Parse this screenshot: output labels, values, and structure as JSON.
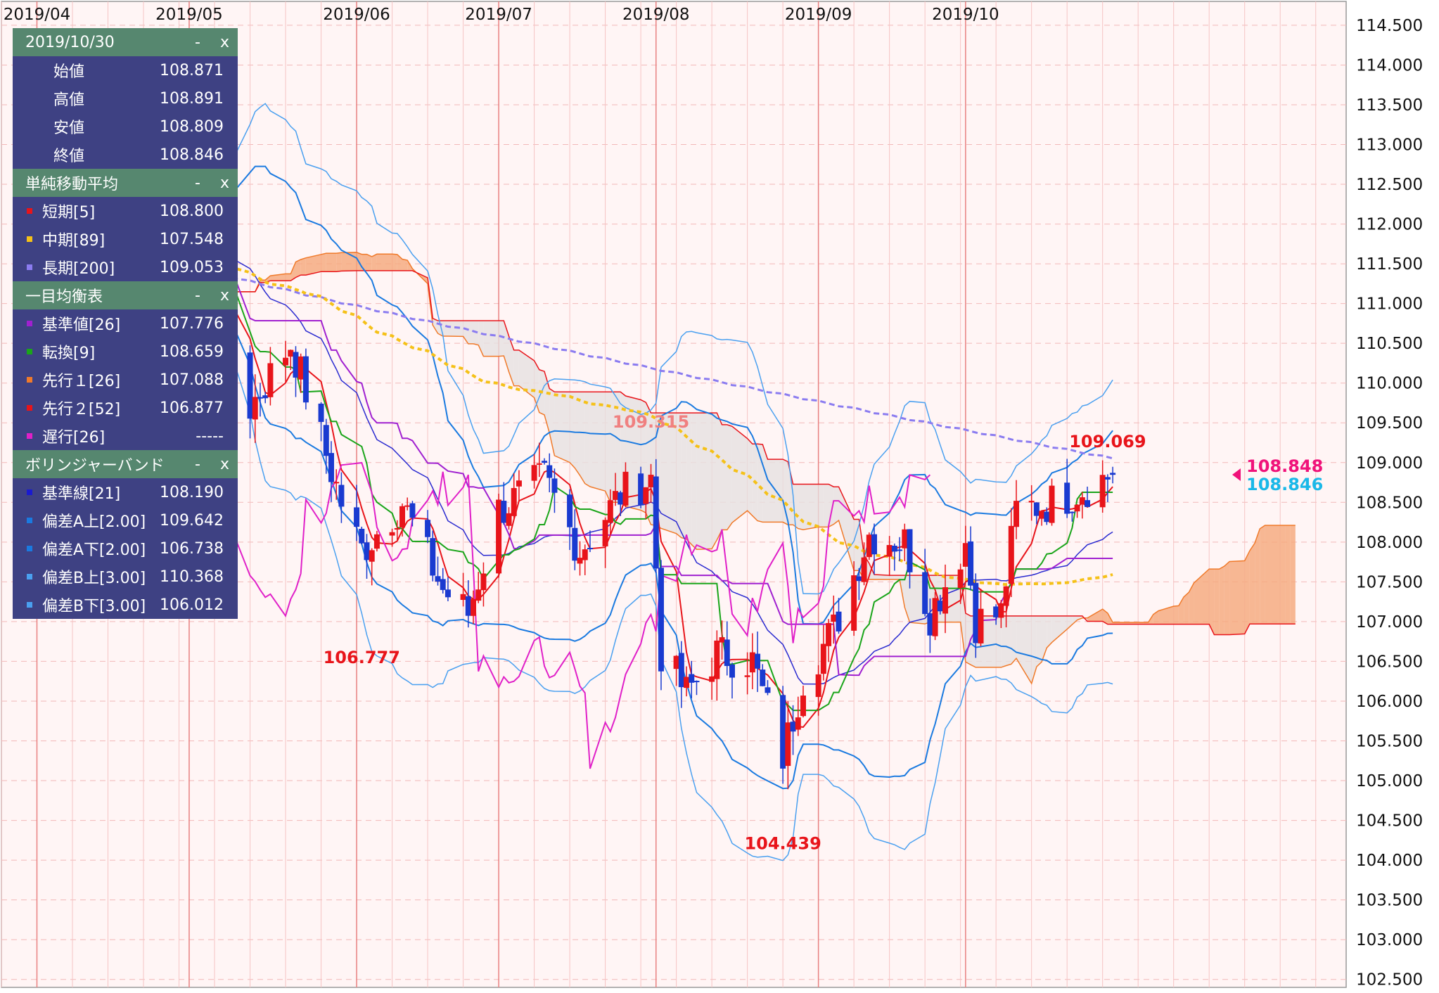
{
  "panel": {
    "date_section": {
      "title": "2019/10/30",
      "minimize": "-",
      "close": "x",
      "rows": [
        {
          "label": "始値",
          "value": "108.871"
        },
        {
          "label": "高値",
          "value": "108.891"
        },
        {
          "label": "安値",
          "value": "108.809"
        },
        {
          "label": "終値",
          "value": "108.846"
        }
      ]
    },
    "sma_section": {
      "title": "単純移動平均",
      "minimize": "-",
      "close": "x",
      "rows": [
        {
          "label": "短期[5]",
          "value": "108.800",
          "color": "#e8141a"
        },
        {
          "label": "中期[89]",
          "value": "107.548",
          "color": "#f5c118"
        },
        {
          "label": "長期[200]",
          "value": "109.053",
          "color": "#8b7cf0"
        }
      ]
    },
    "ichimoku_section": {
      "title": "一目均衡表",
      "minimize": "-",
      "close": "x",
      "rows": [
        {
          "label": "基準値[26]",
          "value": "107.776",
          "color": "#a020d0"
        },
        {
          "label": "転換[9]",
          "value": "108.659",
          "color": "#1aa51a"
        },
        {
          "label": "先行１[26]",
          "value": "107.088",
          "color": "#f07a2a"
        },
        {
          "label": "先行２[52]",
          "value": "106.877",
          "color": "#e8141a"
        },
        {
          "label": "遅行[26]",
          "value": "-----",
          "color": "#e020c8"
        }
      ]
    },
    "bb_section": {
      "title": "ボリンジャーバンド",
      "minimize": "-",
      "close": "x",
      "rows": [
        {
          "label": "基準線[21]",
          "value": "108.190",
          "color": "#1a1ad0"
        },
        {
          "label": "偏差A上[2.00]",
          "value": "109.642",
          "color": "#1a7ae0"
        },
        {
          "label": "偏差A下[2.00]",
          "value": "106.738",
          "color": "#1a7ae0"
        },
        {
          "label": "偏差B上[3.00]",
          "value": "110.368",
          "color": "#4aa0f0"
        },
        {
          "label": "偏差B下[3.00]",
          "value": "106.012",
          "color": "#4aa0f0"
        }
      ]
    }
  },
  "chart_data": {
    "type": "candlestick",
    "x_axis": {
      "tick_labels": [
        "2019/04",
        "2019/05",
        "2019/06",
        "2019/07",
        "2019/08",
        "2019/09",
        "2019/10"
      ],
      "range": [
        "2019/03/25",
        "2019/12/15"
      ]
    },
    "y_axis": {
      "range": [
        102.4,
        114.8
      ],
      "tick_labels": [
        "102.500",
        "103.000",
        "103.500",
        "104.000",
        "104.500",
        "105.000",
        "105.500",
        "106.000",
        "106.500",
        "107.000",
        "107.500",
        "108.000",
        "108.500",
        "109.000",
        "109.500",
        "110.000",
        "110.500",
        "111.000",
        "111.500",
        "112.000",
        "112.500",
        "113.000",
        "113.500",
        "114.000",
        "114.500"
      ]
    },
    "annotations": [
      {
        "text": "106.777",
        "date": "2019/06/04",
        "price": 106.777,
        "color": "#e8141a"
      },
      {
        "text": "109.315",
        "date": "2019/07/31",
        "price": 109.315,
        "color": "#f08080"
      },
      {
        "text": "104.439",
        "date": "2019/08/26",
        "price": 104.439,
        "color": "#e8141a"
      },
      {
        "text": "109.069",
        "date": "2019/10/29",
        "price": 109.069,
        "color": "#e8141a"
      },
      {
        "text": "108.848",
        "price": 108.848,
        "color": "#f0127a"
      },
      {
        "text": "108.846",
        "price": 108.846,
        "color": "#1ab8e8"
      }
    ],
    "grid": true,
    "colors": {
      "up": "#e8141a",
      "down": "#1a3ad0",
      "cloud_bull": "#f5a77a",
      "cloud_bear": "#e6e1e1"
    }
  }
}
